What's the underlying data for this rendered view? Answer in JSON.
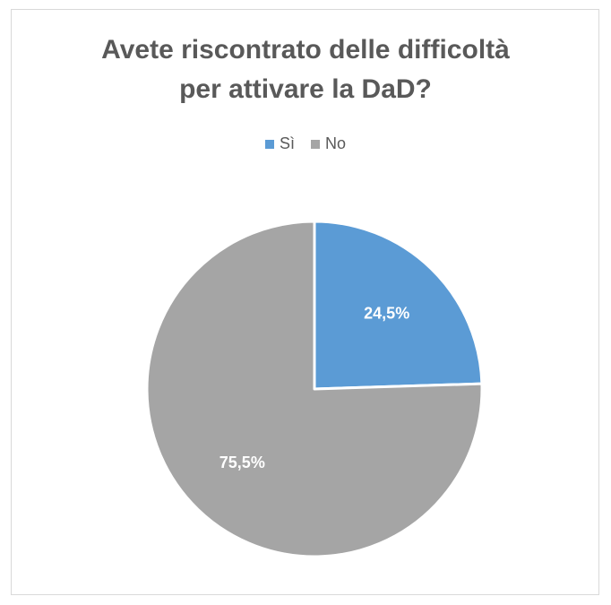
{
  "chart_data": {
    "type": "pie",
    "title_lines": [
      "Avete riscontrato delle difficoltà",
      "per attivare la DaD?"
    ],
    "categories": [
      "Sì",
      "No"
    ],
    "values": [
      24.5,
      75.5
    ],
    "data_labels": [
      "24,5%",
      "75,5%"
    ],
    "colors": [
      "#5b9bd5",
      "#a5a5a5"
    ],
    "legend_position": "top",
    "start_angle_deg": 0,
    "direction": "clockwise"
  }
}
